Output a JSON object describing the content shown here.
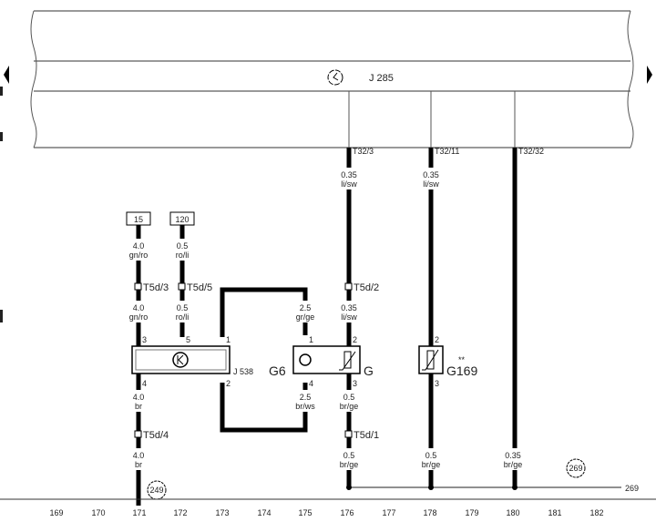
{
  "control_unit": {
    "label": "J 285",
    "icon": "clock-gauge-icon"
  },
  "connectors_top": [
    "T32/3",
    "T32/11",
    "T32/32"
  ],
  "terminals": [
    "15",
    "120"
  ],
  "wires": {
    "w15_top": [
      "4.0",
      "gn/ro"
    ],
    "w120_top": [
      "0.5",
      "ro/li"
    ],
    "w15_mid": [
      "4.0",
      "gn/ro"
    ],
    "w120_mid": [
      "0.5",
      "ro/li"
    ],
    "g_pin1": [
      "2.5",
      "gr/ge"
    ],
    "g_pin2": [
      "0.35",
      "li/sw"
    ],
    "t323": [
      "0.35",
      "li/sw"
    ],
    "t3211": [
      "0.35",
      "li/sw"
    ],
    "j538_pin4": [
      "4.0",
      "br"
    ],
    "j538_gnd": [
      "4.0",
      "br"
    ],
    "g6_pin4": [
      "2.5",
      "br/ws"
    ],
    "g_pin3": [
      "0.5",
      "br/ge"
    ],
    "g_gnd": [
      "0.5",
      "br/ge"
    ],
    "g169_gnd": [
      "0.5",
      "br/ge"
    ],
    "t3232_gnd": [
      "0.35",
      "br/ge"
    ]
  },
  "plug_labels": [
    "T5d/3",
    "T5d/5",
    "T5d/2",
    "T5d/4",
    "T5d/1"
  ],
  "components": {
    "j538": "J 538",
    "g6": "G6",
    "g": "G",
    "g169": "G169",
    "g169_mark": "**"
  },
  "pins": {
    "j538_3": "3",
    "j538_5": "5",
    "j538_1": "1",
    "j538_4": "4",
    "j538_2": "2",
    "g6_1": "1",
    "g6_4": "4",
    "g_2": "2",
    "g_3": "3",
    "g169_2": "2",
    "g169_3": "3"
  },
  "ground_refs": [
    "249",
    "269"
  ],
  "ground_line_ref": "269",
  "track_numbers": [
    "169",
    "170",
    "171",
    "172",
    "173",
    "174",
    "175",
    "176",
    "177",
    "178",
    "179",
    "180",
    "181",
    "182"
  ]
}
